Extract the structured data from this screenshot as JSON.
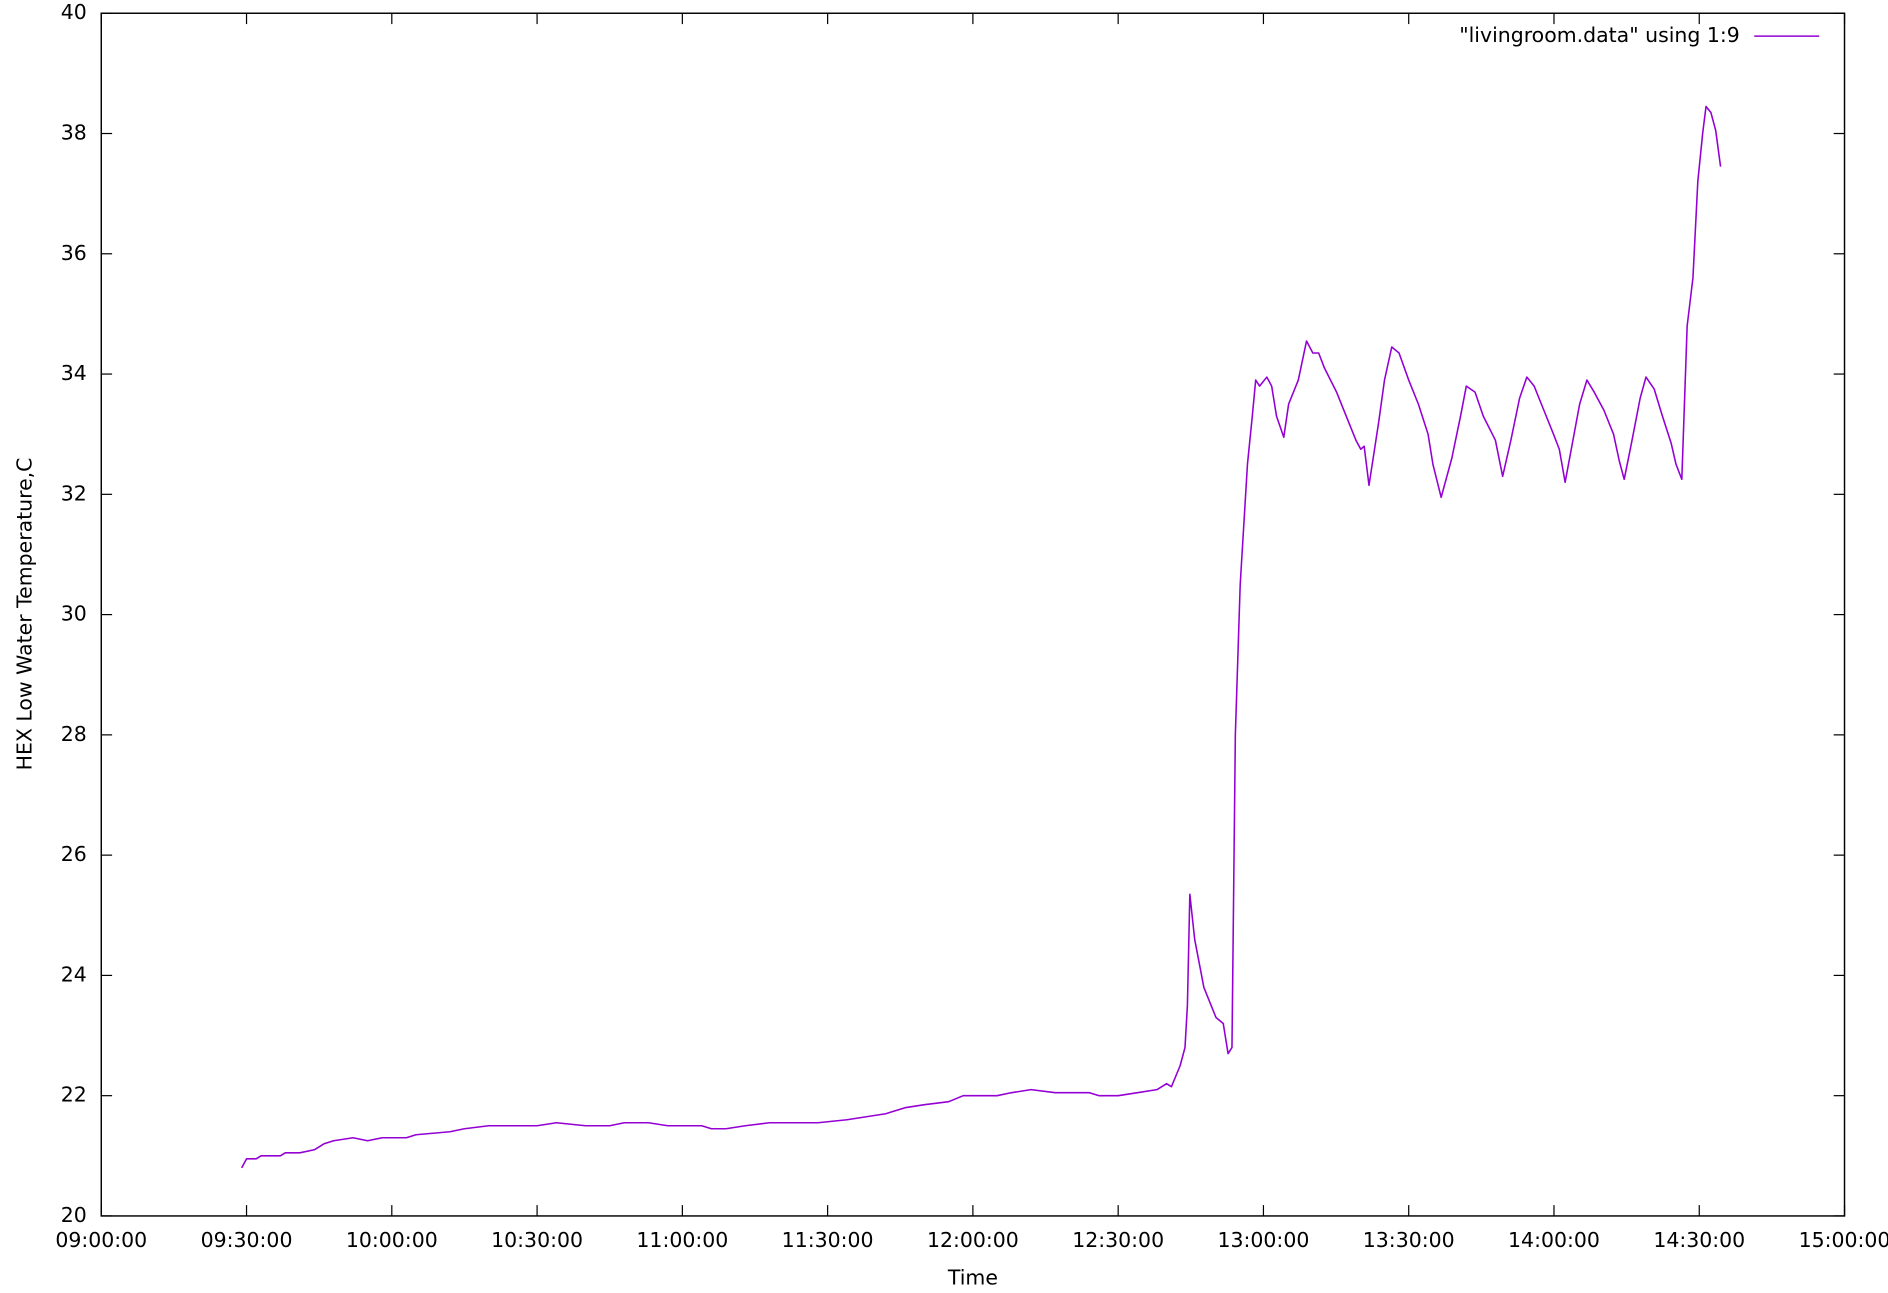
{
  "chart_data": {
    "type": "line",
    "xlabel": "Time",
    "ylabel": "HEX Low Water Temperature,C",
    "x": [
      "09:29:00",
      "09:30:00",
      "09:32:00",
      "09:33:00",
      "09:37:00",
      "09:38:00",
      "09:41:00",
      "09:44:00",
      "09:46:00",
      "09:48:00",
      "09:52:00",
      "09:55:00",
      "09:58:00",
      "10:03:00",
      "10:05:00",
      "10:12:00",
      "10:15:00",
      "10:20:00",
      "10:30:00",
      "10:34:00",
      "10:40:00",
      "10:45:00",
      "10:48:00",
      "10:53:00",
      "10:57:00",
      "11:04:00",
      "11:06:00",
      "11:09:00",
      "11:13:00",
      "11:18:00",
      "11:25:00",
      "11:28:00",
      "11:34:00",
      "11:38:00",
      "11:42:00",
      "11:46:00",
      "11:50:00",
      "11:55:00",
      "11:58:00",
      "12:05:00",
      "12:08:00",
      "12:12:00",
      "12:17:00",
      "12:24:00",
      "12:26:00",
      "12:30:00",
      "12:34:00",
      "12:38:00",
      "12:40:00",
      "12:41:00",
      "12:42:48",
      "12:43:48",
      "12:44:18",
      "12:44:48",
      "12:45:48",
      "12:47:42",
      "12:50:12",
      "12:51:42",
      "12:52:42",
      "12:53:30",
      "12:54:12",
      "12:55:12",
      "12:56:42",
      "12:57:42",
      "12:58:24",
      "12:59:12",
      "13:00:42",
      "13:01:42",
      "13:02:42",
      "13:04:12",
      "13:05:12",
      "13:07:12",
      "13:08:54",
      "13:10:12",
      "13:11:24",
      "13:12:36",
      "13:15:06",
      "13:17:06",
      "13:19:06",
      "13:20:06",
      "13:20:48",
      "13:21:48",
      "13:23:48",
      "13:25:00",
      "13:26:30",
      "13:28:00",
      "13:30:00",
      "13:32:00",
      "13:34:00",
      "13:35:00",
      "13:36:42",
      "13:38:54",
      "13:40:42",
      "13:41:54",
      "13:43:42",
      "13:45:24",
      "13:47:54",
      "13:49:24",
      "13:51:06",
      "13:52:54",
      "13:54:24",
      "13:55:54",
      "13:57:54",
      "13:59:54",
      "14:01:06",
      "14:02:18",
      "14:03:48",
      "14:05:18",
      "14:06:48",
      "14:08:18",
      "14:10:18",
      "14:12:18",
      "14:13:30",
      "14:14:30",
      "14:16:00",
      "14:17:48",
      "14:19:00",
      "14:20:42",
      "14:22:12",
      "14:24:12",
      "14:25:12",
      "14:26:24",
      "14:27:30",
      "14:28:42",
      "14:29:42",
      "14:30:42",
      "14:31:24",
      "14:32:24",
      "14:33:24",
      "14:34:24"
    ],
    "series": [
      {
        "name": "\"livingroom.data\" using 1:9",
        "color": "#9400d3",
        "values": [
          20.8,
          20.95,
          20.95,
          21.0,
          21.0,
          21.05,
          21.05,
          21.1,
          21.2,
          21.25,
          21.3,
          21.25,
          21.3,
          21.3,
          21.35,
          21.4,
          21.45,
          21.5,
          21.5,
          21.55,
          21.5,
          21.5,
          21.55,
          21.55,
          21.5,
          21.5,
          21.45,
          21.45,
          21.5,
          21.55,
          21.55,
          21.55,
          21.6,
          21.65,
          21.7,
          21.8,
          21.85,
          21.9,
          22.0,
          22.0,
          22.05,
          22.1,
          22.05,
          22.05,
          22.0,
          22.0,
          22.05,
          22.1,
          22.2,
          22.15,
          22.5,
          22.8,
          23.5,
          25.35,
          24.6,
          23.8,
          23.3,
          23.2,
          22.7,
          22.8,
          28.0,
          30.5,
          32.5,
          33.3,
          33.9,
          33.8,
          33.95,
          33.8,
          33.3,
          32.95,
          33.5,
          33.9,
          34.55,
          34.35,
          34.35,
          34.1,
          33.7,
          33.3,
          32.9,
          32.75,
          32.8,
          32.15,
          33.2,
          33.9,
          34.45,
          34.35,
          33.9,
          33.5,
          33.0,
          32.5,
          31.95,
          32.6,
          33.3,
          33.8,
          33.7,
          33.3,
          32.9,
          32.3,
          32.9,
          33.6,
          33.95,
          33.8,
          33.4,
          33.0,
          32.75,
          32.2,
          32.85,
          33.5,
          33.9,
          33.7,
          33.4,
          33.0,
          32.55,
          32.25,
          32.85,
          33.6,
          33.95,
          33.75,
          33.35,
          32.85,
          32.5,
          32.25,
          34.8,
          35.6,
          37.2,
          38.0,
          38.45,
          38.35,
          38.05,
          37.45
        ]
      }
    ],
    "xlim": [
      "09:00:00",
      "15:00:00"
    ],
    "xticks": [
      "09:00:00",
      "09:30:00",
      "10:00:00",
      "10:30:00",
      "11:00:00",
      "11:30:00",
      "12:00:00",
      "12:30:00",
      "13:00:00",
      "13:30:00",
      "14:00:00",
      "14:30:00",
      "15:00:00"
    ],
    "ylim": [
      20,
      40
    ],
    "yticks": [
      20,
      22,
      24,
      26,
      28,
      30,
      32,
      34,
      36,
      38,
      40
    ],
    "grid": false,
    "legend": "top-right"
  }
}
